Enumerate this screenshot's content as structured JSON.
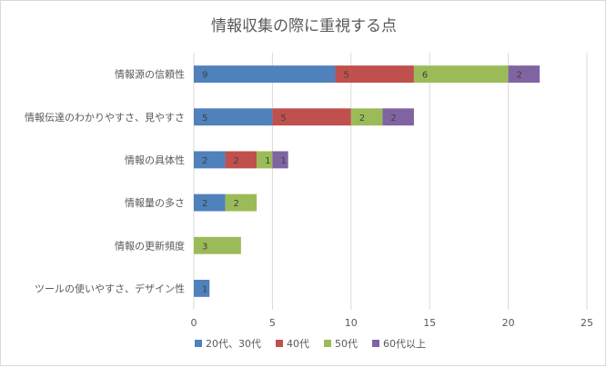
{
  "chart_data": {
    "type": "bar",
    "orientation": "horizontal",
    "stacked": true,
    "title": "情報収集の際に重視する点",
    "categories": [
      "情報源の信頼性",
      "情報伝達のわかりやすさ、見やすさ",
      "情報の具体性",
      "情報量の多さ",
      "情報の更新頻度",
      "ツールの使いやすさ、デザイン性"
    ],
    "series": [
      {
        "name": "20代、30代",
        "color": "#4f81bd",
        "values": [
          9,
          5,
          2,
          2,
          0,
          1
        ]
      },
      {
        "name": "40代",
        "color": "#c0504d",
        "values": [
          5,
          5,
          2,
          0,
          0,
          0
        ]
      },
      {
        "name": "50代",
        "color": "#9bbb59",
        "values": [
          6,
          2,
          1,
          2,
          3,
          0
        ]
      },
      {
        "name": "60代以上",
        "color": "#8064a2",
        "values": [
          2,
          2,
          1,
          0,
          0,
          0
        ]
      }
    ],
    "xlim": [
      0,
      25
    ],
    "xticks": [
      "0",
      "5",
      "10",
      "15",
      "20",
      "25"
    ],
    "grid": "vertical",
    "legend": "bottom"
  }
}
